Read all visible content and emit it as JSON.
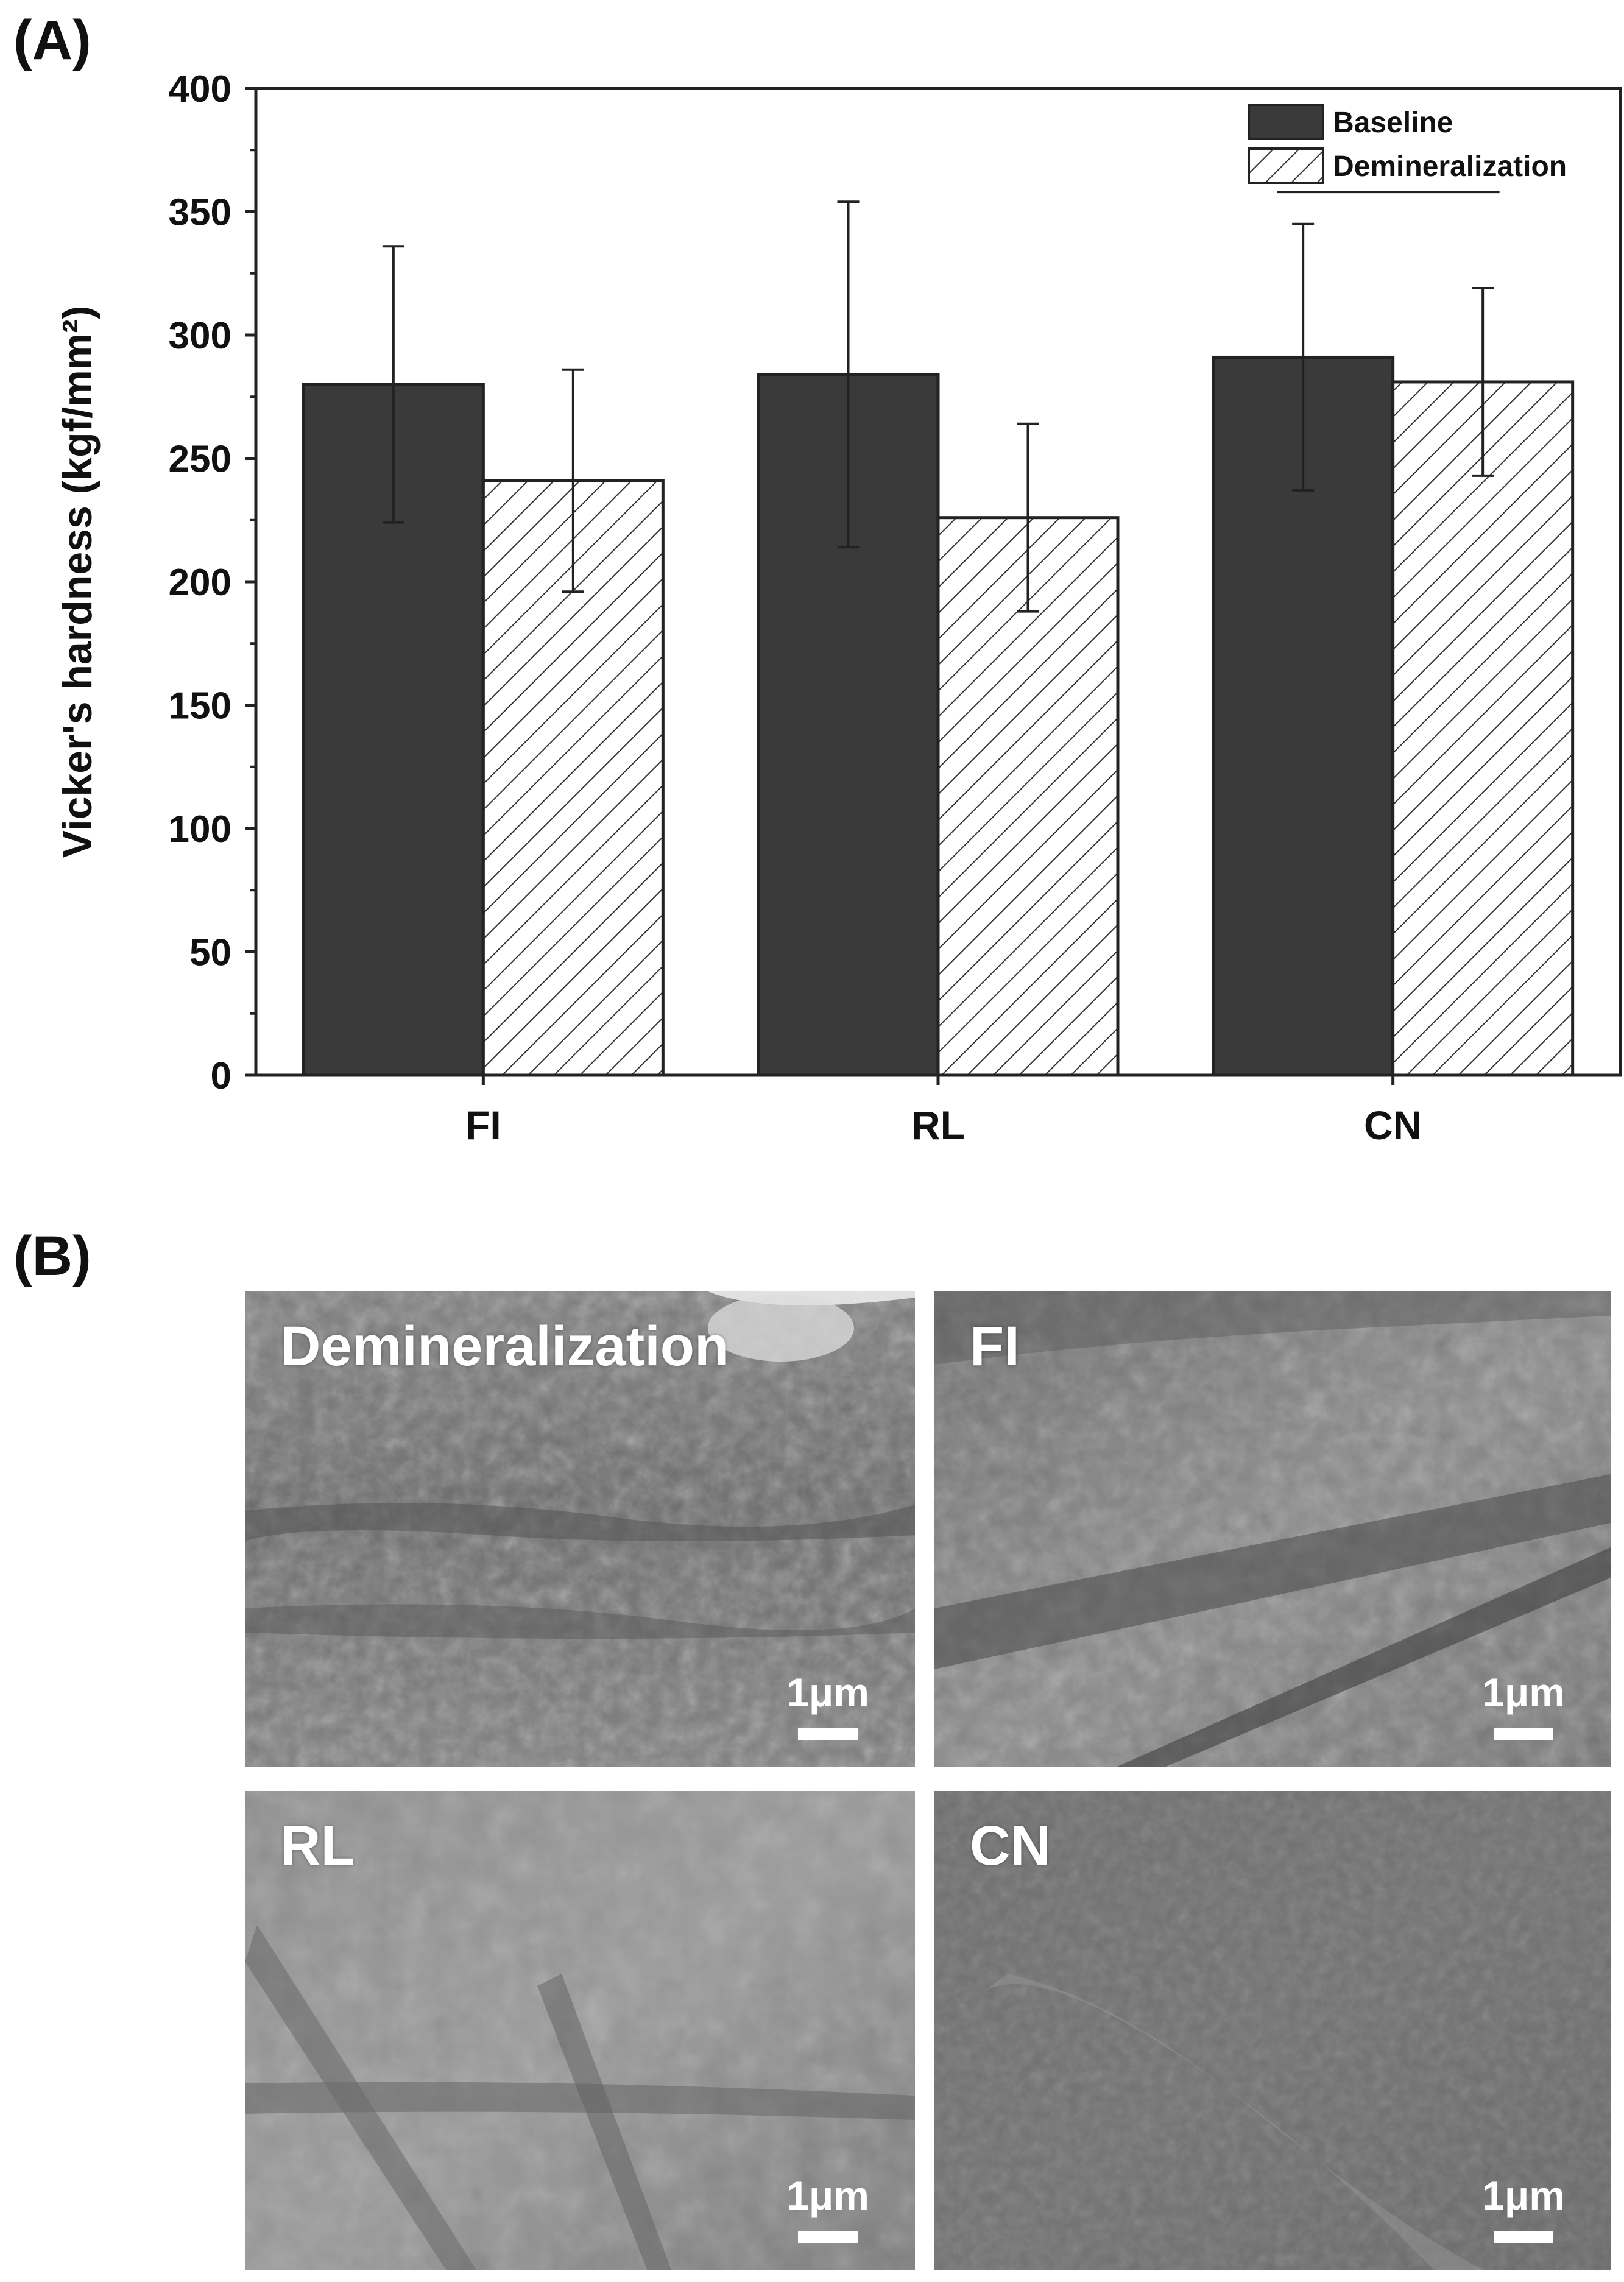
{
  "panel_a_label": "(A)",
  "panel_b_label": "(B)",
  "chart_data": {
    "type": "bar",
    "title": "",
    "xlabel": "",
    "ylabel": "Vicker's hardness (kgf/mm²)",
    "ylim": [
      0,
      400
    ],
    "yticks": [
      0,
      50,
      100,
      150,
      200,
      250,
      300,
      350,
      400
    ],
    "categories": [
      "FI",
      "RL",
      "CN"
    ],
    "series": [
      {
        "name": "Baseline",
        "values": [
          280,
          284,
          291
        ],
        "errors": [
          56,
          70,
          54
        ],
        "color": "#3a3a3a",
        "pattern": "solid"
      },
      {
        "name": "Demineralization",
        "values": [
          241,
          226,
          281
        ],
        "errors": [
          45,
          38,
          38
        ],
        "color": "#ffffff",
        "pattern": "hatch"
      }
    ],
    "legend_position": "top-right",
    "annotations": [
      {
        "type": "bracket",
        "category": "CN",
        "label": ""
      }
    ],
    "grid": false
  },
  "sem_panels": [
    {
      "label": "Demineralization",
      "scalebar": "1μm"
    },
    {
      "label": "FI",
      "scalebar": "1μm"
    },
    {
      "label": "RL",
      "scalebar": "1μm"
    },
    {
      "label": "CN",
      "scalebar": "1μm"
    }
  ]
}
